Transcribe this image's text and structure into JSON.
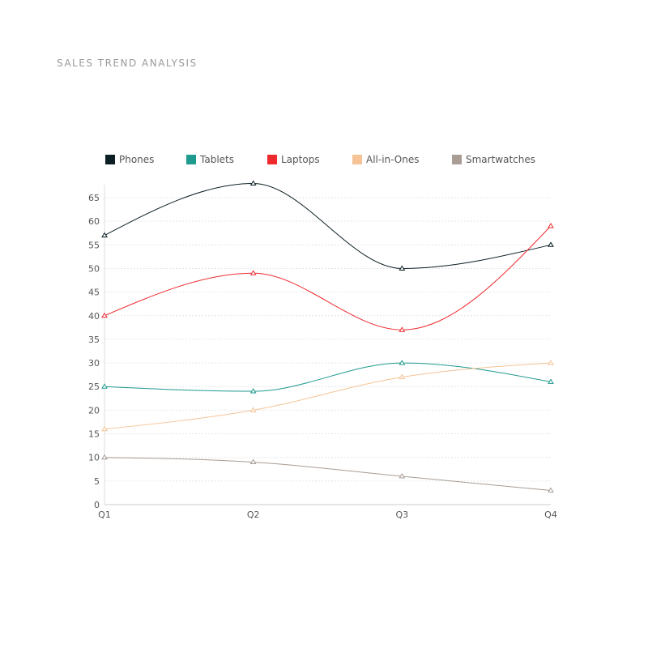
{
  "chart_data": {
    "type": "line",
    "title": "SALES TREND ANALYSIS",
    "xlabel": "",
    "ylabel": "",
    "categories": [
      "Q1",
      "Q2",
      "Q3",
      "Q4"
    ],
    "ylim": [
      0,
      68
    ],
    "yticks": [
      0,
      5,
      10,
      15,
      20,
      25,
      30,
      35,
      40,
      45,
      50,
      55,
      60,
      65
    ],
    "grid": true,
    "legend_position": "top",
    "marker": "triangle",
    "series": [
      {
        "name": "Phones",
        "color": "#0b1f24",
        "values": [
          57,
          68,
          50,
          55
        ]
      },
      {
        "name": "Tablets",
        "color": "#1f9a8f",
        "values": [
          25,
          24,
          30,
          26
        ]
      },
      {
        "name": "Laptops",
        "color": "#ee2a2f",
        "values": [
          40,
          49,
          37,
          59
        ]
      },
      {
        "name": "All-in-Ones",
        "color": "#f5c396",
        "values": [
          16,
          20,
          27,
          30
        ]
      },
      {
        "name": "Smartwatches",
        "color": "#a89c94",
        "values": [
          10,
          9,
          6,
          3
        ]
      }
    ]
  }
}
